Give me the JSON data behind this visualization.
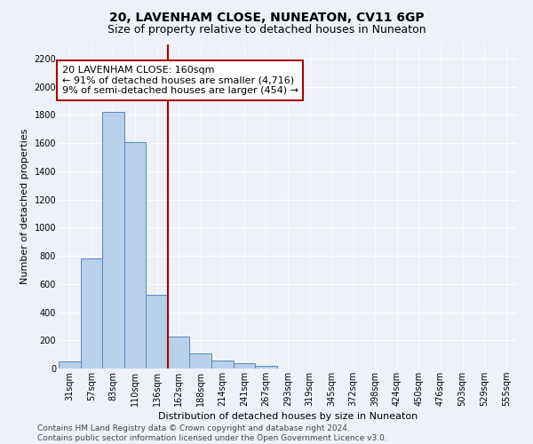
{
  "title": "20, LAVENHAM CLOSE, NUNEATON, CV11 6GP",
  "subtitle": "Size of property relative to detached houses in Nuneaton",
  "xlabel": "Distribution of detached houses by size in Nuneaton",
  "ylabel": "Number of detached properties",
  "bin_labels": [
    "31sqm",
    "57sqm",
    "83sqm",
    "110sqm",
    "136sqm",
    "162sqm",
    "188sqm",
    "214sqm",
    "241sqm",
    "267sqm",
    "293sqm",
    "319sqm",
    "345sqm",
    "372sqm",
    "398sqm",
    "424sqm",
    "450sqm",
    "476sqm",
    "503sqm",
    "529sqm",
    "555sqm"
  ],
  "bar_values": [
    50,
    780,
    1820,
    1610,
    520,
    230,
    105,
    55,
    35,
    20,
    0,
    0,
    0,
    0,
    0,
    0,
    0,
    0,
    0,
    0,
    0
  ],
  "bar_color": "#b8d0ea",
  "bar_edge_color": "#5588bb",
  "vline_x_index": 5,
  "vline_color": "#aa0000",
  "annotation_text": "20 LAVENHAM CLOSE: 160sqm\n← 91% of detached houses are smaller (4,716)\n9% of semi-detached houses are larger (454) →",
  "annotation_box_color": "white",
  "annotation_box_edge_color": "#aa0000",
  "ylim": [
    0,
    2300
  ],
  "yticks": [
    0,
    200,
    400,
    600,
    800,
    1000,
    1200,
    1400,
    1600,
    1800,
    2000,
    2200
  ],
  "footer_text": "Contains HM Land Registry data © Crown copyright and database right 2024.\nContains public sector information licensed under the Open Government Licence v3.0.",
  "background_color": "#eef2f8",
  "grid_color": "white",
  "title_fontsize": 10,
  "subtitle_fontsize": 9,
  "axis_label_fontsize": 8,
  "tick_fontsize": 7,
  "annotation_fontsize": 8,
  "footer_fontsize": 6.5
}
